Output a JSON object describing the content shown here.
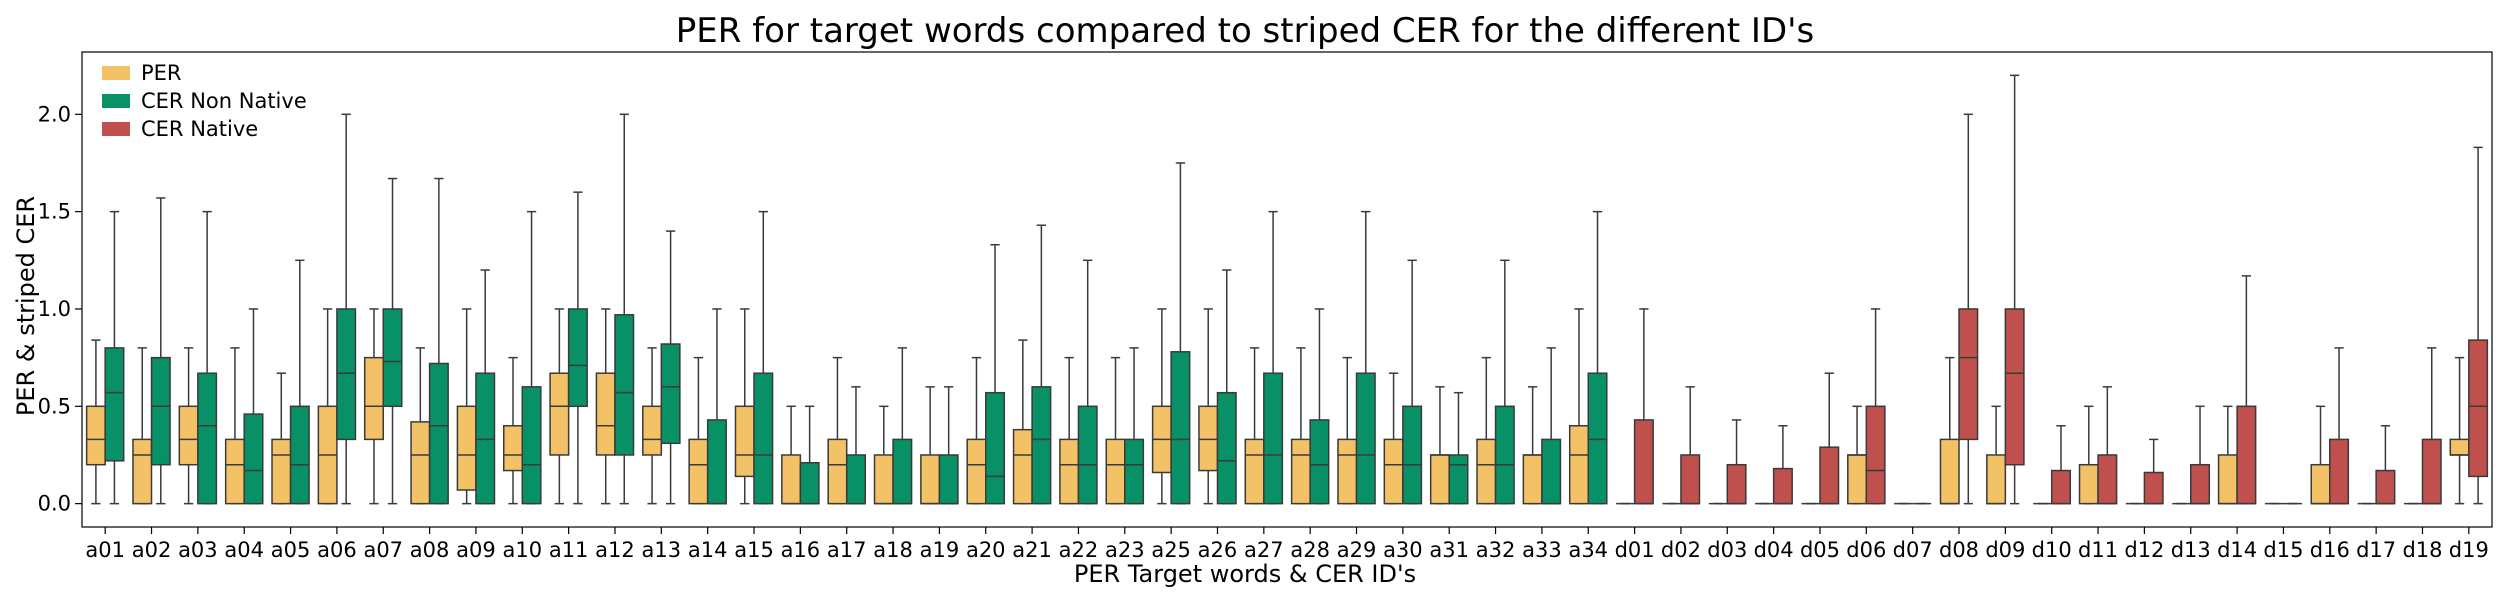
{
  "chart_data": {
    "type": "box",
    "title": "PER for target words compared to striped CER for the different ID's",
    "xlabel": "PER Target words &  CER ID's",
    "ylabel": "PER & striped CER",
    "ylim": [
      -0.12,
      2.32
    ],
    "yticks": [
      0.0,
      0.5,
      1.0,
      1.5,
      2.0
    ],
    "ytick_labels": [
      "0.0",
      "0.5",
      "1.0",
      "1.5",
      "2.0"
    ],
    "legend": {
      "position": "top-left",
      "entries": [
        {
          "label": "PER",
          "color": "#f4c266"
        },
        {
          "label": "CER Non Native",
          "color": "#089067"
        },
        {
          "label": "CER Native",
          "color": "#c0504d"
        }
      ]
    },
    "colors": {
      "PER": "#f4c266",
      "CER Non Native": "#089067",
      "CER Native": "#c0504d"
    },
    "categories": [
      "a01",
      "a02",
      "a03",
      "a04",
      "a05",
      "a06",
      "a07",
      "a08",
      "a09",
      "a10",
      "a11",
      "a12",
      "a13",
      "a14",
      "a15",
      "a16",
      "a17",
      "a18",
      "a19",
      "a20",
      "a21",
      "a22",
      "a23",
      "a25",
      "a26",
      "a27",
      "a28",
      "a29",
      "a30",
      "a31",
      "a32",
      "a33",
      "a34",
      "d01",
      "d02",
      "d03",
      "d04",
      "d05",
      "d06",
      "d07",
      "d08",
      "d09",
      "d10",
      "d11",
      "d12",
      "d13",
      "d14",
      "d15",
      "d16",
      "d17",
      "d18",
      "d19"
    ],
    "series": [
      {
        "name": "PER",
        "boxes": [
          [
            0,
            0.2,
            0.33,
            0.5,
            0.84
          ],
          [
            0,
            0,
            0.25,
            0.33,
            0.8
          ],
          [
            0,
            0.2,
            0.33,
            0.5,
            0.8
          ],
          [
            0,
            0,
            0.2,
            0.33,
            0.8
          ],
          [
            0,
            0,
            0.25,
            0.33,
            0.67
          ],
          [
            0,
            0,
            0.25,
            0.5,
            1.0
          ],
          [
            0,
            0.33,
            0.5,
            0.75,
            1.0
          ],
          [
            0,
            0,
            0.25,
            0.42,
            0.8
          ],
          [
            0,
            0.07,
            0.25,
            0.5,
            1.0
          ],
          [
            0,
            0.17,
            0.25,
            0.4,
            0.75
          ],
          [
            0,
            0.25,
            0.5,
            0.67,
            1.0
          ],
          [
            0,
            0.25,
            0.4,
            0.67,
            1.0
          ],
          [
            0,
            0.25,
            0.33,
            0.5,
            0.8
          ],
          [
            0,
            0,
            0.2,
            0.33,
            0.75
          ],
          [
            0,
            0.14,
            0.25,
            0.5,
            1.0
          ],
          [
            0,
            0,
            0,
            0.25,
            0.5
          ],
          [
            0,
            0,
            0.2,
            0.33,
            0.75
          ],
          [
            0,
            0,
            0,
            0.25,
            0.5
          ],
          [
            0,
            0,
            0,
            0.25,
            0.6
          ],
          [
            0,
            0,
            0.2,
            0.33,
            0.75
          ],
          [
            0,
            0,
            0.25,
            0.38,
            0.84
          ],
          [
            0,
            0,
            0.2,
            0.33,
            0.75
          ],
          [
            0,
            0,
            0.2,
            0.33,
            0.75
          ],
          [
            0,
            0.16,
            0.33,
            0.5,
            1.0
          ],
          [
            0,
            0.17,
            0.33,
            0.5,
            1.0
          ],
          [
            0,
            0,
            0.25,
            0.33,
            0.8
          ],
          [
            0,
            0,
            0.25,
            0.33,
            0.8
          ],
          [
            0,
            0,
            0.25,
            0.33,
            0.75
          ],
          [
            0,
            0,
            0.2,
            0.33,
            0.67
          ],
          [
            0,
            0,
            0.25,
            0.25,
            0.6
          ],
          [
            0,
            0,
            0.2,
            0.33,
            0.75
          ],
          [
            0,
            0,
            0.25,
            0.25,
            0.6
          ],
          [
            0,
            0,
            0.25,
            0.4,
            1.0
          ]
        ]
      },
      {
        "name": "CER Non Native",
        "boxes": [
          [
            0,
            0.22,
            0.57,
            0.8,
            1.5
          ],
          [
            0,
            0.2,
            0.5,
            0.75,
            1.57
          ],
          [
            0,
            0,
            0.4,
            0.67,
            1.5
          ],
          [
            0,
            0,
            0.17,
            0.46,
            1.0
          ],
          [
            0,
            0,
            0.2,
            0.5,
            1.25
          ],
          [
            0,
            0.33,
            0.67,
            1.0,
            2.0
          ],
          [
            0,
            0.5,
            0.73,
            1.0,
            1.67
          ],
          [
            0,
            0,
            0.4,
            0.72,
            1.67
          ],
          [
            0,
            0,
            0.33,
            0.67,
            1.2
          ],
          [
            0,
            0,
            0.2,
            0.6,
            1.5
          ],
          [
            0,
            0.5,
            0.71,
            1.0,
            1.6
          ],
          [
            0,
            0.25,
            0.57,
            0.97,
            2.0
          ],
          [
            0,
            0.31,
            0.6,
            0.82,
            1.4
          ],
          [
            0,
            0,
            0,
            0.43,
            1.0
          ],
          [
            0,
            0,
            0.25,
            0.67,
            1.5
          ],
          [
            0,
            0,
            0,
            0.21,
            0.5
          ],
          [
            0,
            0,
            0,
            0.25,
            0.6
          ],
          [
            0,
            0,
            0,
            0.33,
            0.8
          ],
          [
            0,
            0,
            0,
            0.25,
            0.6
          ],
          [
            0,
            0,
            0.14,
            0.57,
            1.33
          ],
          [
            0,
            0,
            0.33,
            0.6,
            1.43
          ],
          [
            0,
            0,
            0.2,
            0.5,
            1.25
          ],
          [
            0,
            0,
            0.2,
            0.33,
            0.8
          ],
          [
            0,
            0,
            0.33,
            0.78,
            1.75
          ],
          [
            0,
            0,
            0.22,
            0.57,
            1.2
          ],
          [
            0,
            0,
            0.25,
            0.67,
            1.5
          ],
          [
            0,
            0,
            0.2,
            0.43,
            1.0
          ],
          [
            0,
            0,
            0.25,
            0.67,
            1.5
          ],
          [
            0,
            0,
            0.2,
            0.5,
            1.25
          ],
          [
            0,
            0,
            0.2,
            0.25,
            0.57
          ],
          [
            0,
            0,
            0.2,
            0.5,
            1.25
          ],
          [
            0,
            0,
            0,
            0.33,
            0.8
          ],
          [
            0,
            0,
            0.33,
            0.67,
            1.5
          ]
        ]
      },
      {
        "name": "CER Native",
        "boxes": [
          [
            0,
            0,
            0,
            0.43,
            1.0
          ],
          [
            0,
            0,
            0,
            0.25,
            0.6
          ],
          [
            0,
            0,
            0,
            0.2,
            0.43
          ],
          [
            0,
            0,
            0,
            0.18,
            0.4
          ],
          [
            0,
            0,
            0,
            0.29,
            0.67
          ],
          [
            0,
            0,
            0.17,
            0.5,
            1.0
          ],
          [
            0,
            0,
            0,
            0,
            0
          ],
          [
            0,
            0.33,
            0.75,
            1.0,
            2.0
          ],
          [
            0,
            0.2,
            0.67,
            1.0,
            2.2
          ],
          [
            0,
            0,
            0,
            0.17,
            0.4
          ],
          [
            0,
            0,
            0,
            0.25,
            0.6
          ],
          [
            0,
            0,
            0,
            0.16,
            0.33
          ],
          [
            0,
            0,
            0,
            0.2,
            0.5
          ],
          [
            0,
            0,
            0,
            0.5,
            1.17
          ],
          [
            0,
            0,
            0,
            0,
            0
          ],
          [
            0,
            0,
            0,
            0.33,
            0.8
          ],
          [
            0,
            0,
            0,
            0.17,
            0.4
          ],
          [
            0,
            0,
            0,
            0.33,
            0.8
          ],
          [
            0,
            0.14,
            0.5,
            0.84,
            1.83
          ]
        ]
      },
      {
        "name": "PER (d)",
        "boxes": [
          [
            0,
            0,
            0,
            0,
            0
          ],
          [
            0,
            0,
            0,
            0,
            0
          ],
          [
            0,
            0,
            0,
            0,
            0
          ],
          [
            0,
            0,
            0,
            0,
            0
          ],
          [
            0,
            0,
            0,
            0,
            0
          ],
          [
            0,
            0,
            0.25,
            0.25,
            0.5
          ],
          [
            0,
            0,
            0,
            0,
            0
          ],
          [
            0,
            0,
            0,
            0.33,
            0.75
          ],
          [
            0,
            0,
            0,
            0.25,
            0.5
          ],
          [
            0,
            0,
            0,
            0,
            0
          ],
          [
            0,
            0,
            0.2,
            0.2,
            0.5
          ],
          [
            0,
            0,
            0,
            0,
            0
          ],
          [
            0,
            0,
            0,
            0,
            0
          ],
          [
            0,
            0,
            0,
            0.25,
            0.5
          ],
          [
            0,
            0,
            0,
            0,
            0
          ],
          [
            0,
            0,
            0,
            0.2,
            0.5
          ],
          [
            0,
            0,
            0,
            0,
            0
          ],
          [
            0,
            0,
            0,
            0,
            0
          ],
          [
            0,
            0.25,
            0.25,
            0.33,
            0.75
          ]
        ]
      }
    ]
  }
}
